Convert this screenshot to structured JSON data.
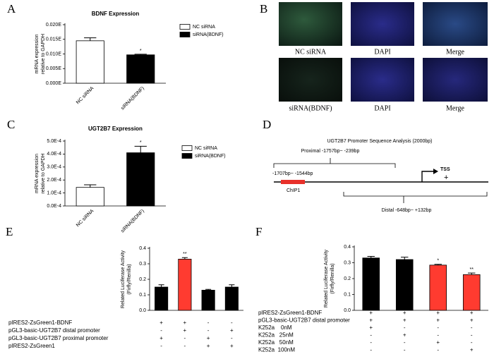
{
  "panel_labels": [
    "A",
    "B",
    "C",
    "D",
    "E",
    "F"
  ],
  "chart_data": [
    {
      "type": "bar",
      "title": "BDNF Expression",
      "y_label": [
        "mRNA expression",
        "relative to GAPDH"
      ],
      "categories": [
        "NC siRNA",
        "siRNA(BDNF)"
      ],
      "values": [
        0.0145,
        0.0097
      ],
      "errors": [
        0.001,
        0.0002
      ],
      "colors": [
        "#ffffff",
        "#000000"
      ],
      "annotations": [
        null,
        "*"
      ],
      "ylim": [
        0,
        0.02
      ],
      "yticks": [
        {
          "value": 0,
          "label": "0.000E"
        },
        {
          "value": 0.005,
          "label": "0.005E"
        },
        {
          "value": 0.01,
          "label": "0.010E"
        },
        {
          "value": 0.015,
          "label": "0.015E"
        },
        {
          "value": 0.02,
          "label": "0.020E"
        }
      ],
      "legend": [
        "NC siRNA",
        "siRNA(BDNF)"
      ]
    },
    {
      "type": "bar",
      "title": "UGT2B7 Expression",
      "y_label": [
        "mRNA expression",
        "relative to GAPDH"
      ],
      "categories": [
        "NC siRNA",
        "siRNA(BDNF)"
      ],
      "values": [
        0.000143,
        0.00041
      ],
      "errors": [
        2e-05,
        5e-05
      ],
      "colors": [
        "#ffffff",
        "#000000"
      ],
      "annotations": [
        null,
        "*"
      ],
      "ylim": [
        0,
        0.0005
      ],
      "yticks": [
        {
          "value": 0,
          "label": "0.0E-4"
        },
        {
          "value": 0.0001,
          "label": "1.0E-4"
        },
        {
          "value": 0.0002,
          "label": "2.0E-4"
        },
        {
          "value": 0.0003,
          "label": "3.0E-4"
        },
        {
          "value": 0.0004,
          "label": "4.0E-4"
        },
        {
          "value": 0.0005,
          "label": "5.0E-4"
        }
      ],
      "legend": [
        "NC siRNA",
        "siRNA(BDNF)"
      ]
    },
    {
      "type": "bar",
      "y_label": [
        "Related Luciferase Activity",
        "(Firfly/Renilla)"
      ],
      "values": [
        0.15,
        0.33,
        0.13,
        0.15
      ],
      "errors": [
        0.015,
        0.01,
        0.005,
        0.015
      ],
      "colors": [
        "#000000",
        "#ff3b30",
        "#000000",
        "#000000"
      ],
      "annotations": [
        null,
        "**",
        null,
        null
      ],
      "ylim": [
        0,
        0.4
      ],
      "yticks": [
        {
          "value": 0,
          "label": "0.0"
        },
        0.1,
        0.2,
        0.3,
        0.4
      ],
      "conditions": [
        {
          "label": "pIRES2-ZsGreen1-BDNF",
          "signs": [
            "+",
            "+",
            "-",
            "-"
          ]
        },
        {
          "label": "pGL3-basic-UGT2B7 distal promoter",
          "signs": [
            "-",
            "+",
            "-",
            "+"
          ]
        },
        {
          "label": "pGL3-basic-UGT2B7 proximal promoter",
          "signs": [
            "+",
            "-",
            "+",
            "-"
          ]
        },
        {
          "label": "pIRES2-ZsGreen1",
          "signs": [
            "-",
            "-",
            "+",
            "+"
          ]
        }
      ]
    },
    {
      "type": "bar",
      "y_label": [
        "Related Luciferase Activity",
        "(Firfly/Renilla)"
      ],
      "values": [
        0.33,
        0.32,
        0.285,
        0.225
      ],
      "errors": [
        0.01,
        0.015,
        0.005,
        0.01
      ],
      "colors": [
        "#000000",
        "#000000",
        "#ff3b30",
        "#ff3b30"
      ],
      "annotations": [
        null,
        null,
        "*",
        "**"
      ],
      "ylim": [
        0,
        0.4
      ],
      "yticks": [
        {
          "value": 0,
          "label": "0.0"
        },
        0.1,
        0.2,
        0.3,
        0.4
      ],
      "conditions": [
        {
          "label": "pIRES2-ZsGreen1-BDNF",
          "signs": [
            "+",
            "+",
            "+",
            "+"
          ]
        },
        {
          "label": "pGL3-basic-UGT2B7 distal promoter",
          "signs": [
            "+",
            "+",
            "+",
            "+"
          ]
        },
        {
          "label": "K252a    0nM",
          "signs": [
            "+",
            "-",
            "-",
            "-"
          ]
        },
        {
          "label": "K252a   25nM",
          "signs": [
            "-",
            "+",
            "-",
            "-"
          ]
        },
        {
          "label": "K252a   50nM",
          "signs": [
            "-",
            "-",
            "+",
            "-"
          ]
        },
        {
          "label": "K252a  100nM",
          "signs": [
            "-",
            "-",
            "-",
            "+"
          ]
        }
      ]
    }
  ],
  "microscopy": {
    "rows": [
      [
        "NC siRNA",
        "DAPI",
        "Merge"
      ],
      [
        "siRNA(BDNF)",
        "DAPI",
        "Merge"
      ]
    ]
  },
  "diagram": {
    "title": "UGT2B7 Promoter Sequence Analysis (2000bp)",
    "proximal": "Proximal  -1757bp~ -239bp",
    "chip_range": "-1707bp~ -1544bp",
    "chip": "ChIP1",
    "tss": "TSS",
    "plus": "+",
    "distal": "Distal  -648bp~ +132bp"
  }
}
